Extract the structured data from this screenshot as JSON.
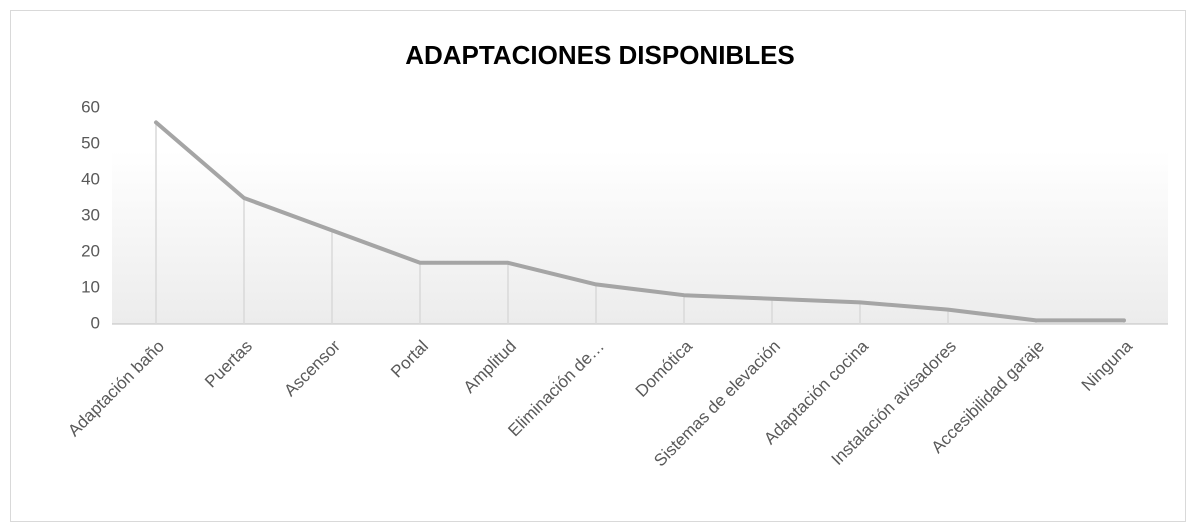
{
  "chart_data": {
    "type": "line",
    "title": "ADAPTACIONES DISPONIBLES",
    "categories": [
      "Adaptación baño",
      "Puertas",
      "Ascensor",
      "Portal",
      "Amplitud",
      "Eliminación de…",
      "Domótica",
      "Sistemas de elevación",
      "Adaptación cocina",
      "Instalación avisadores",
      "Accesibilidad garaje",
      "Ninguna"
    ],
    "values": [
      56,
      35,
      26,
      17,
      17,
      11,
      8,
      7,
      6,
      4,
      1,
      1
    ],
    "color": "#a5a5a5",
    "ylim": [
      0,
      60
    ],
    "yticks": [
      0,
      10,
      20,
      30,
      40,
      50,
      60
    ],
    "grid": false,
    "drop_lines": true
  }
}
